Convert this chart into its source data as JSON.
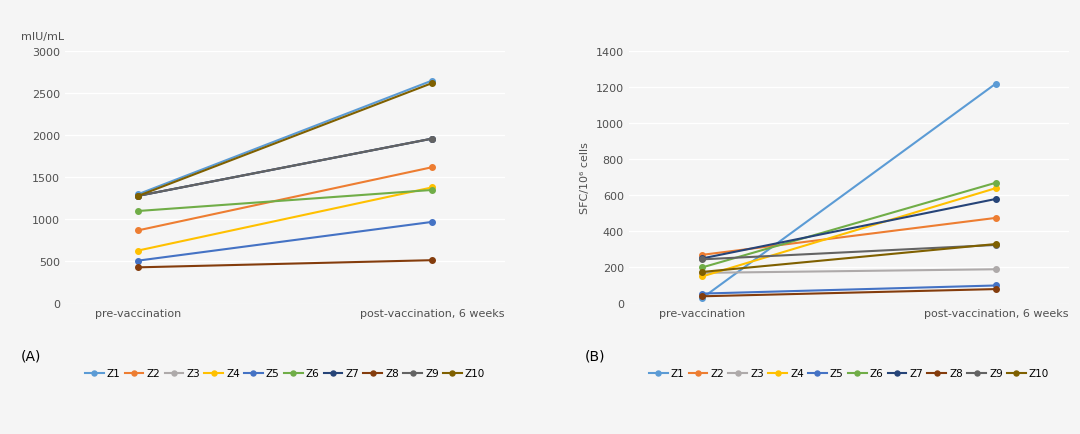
{
  "A": {
    "ylabel_top": "mIU/mL",
    "ylim": [
      0,
      3000
    ],
    "yticks": [
      0,
      500,
      1000,
      1500,
      2000,
      2500,
      3000
    ],
    "series": {
      "Z1": {
        "pre": 1300,
        "post": 2650,
        "color": "#5B9BD5"
      },
      "Z2": {
        "pre": 870,
        "post": 1620,
        "color": "#ED7D31"
      },
      "Z3": {
        "pre": 1280,
        "post": 1960,
        "color": "#AEAAAA"
      },
      "Z4": {
        "pre": 630,
        "post": 1380,
        "color": "#FFC000"
      },
      "Z5": {
        "pre": 510,
        "post": 970,
        "color": "#4472C4"
      },
      "Z6": {
        "pre": 1100,
        "post": 1350,
        "color": "#70AD47"
      },
      "Z7": {
        "pre": 1280,
        "post": 1960,
        "color": "#264478"
      },
      "Z8": {
        "pre": 430,
        "post": 515,
        "color": "#843C0C"
      },
      "Z9": {
        "pre": 1280,
        "post": 1960,
        "color": "#636363"
      },
      "Z10": {
        "pre": 1280,
        "post": 2620,
        "color": "#7F6000"
      }
    }
  },
  "B": {
    "ylabel_side": "SFC/10⁶ cells",
    "ylim": [
      0,
      1400
    ],
    "yticks": [
      0,
      200,
      400,
      600,
      800,
      1000,
      1200,
      1400
    ],
    "series": {
      "Z1": {
        "pre": 30,
        "post": 1220,
        "color": "#5B9BD5"
      },
      "Z2": {
        "pre": 270,
        "post": 475,
        "color": "#ED7D31"
      },
      "Z3": {
        "pre": 170,
        "post": 190,
        "color": "#AEAAAA"
      },
      "Z4": {
        "pre": 150,
        "post": 640,
        "color": "#FFC000"
      },
      "Z5": {
        "pre": 55,
        "post": 100,
        "color": "#4472C4"
      },
      "Z6": {
        "pre": 200,
        "post": 670,
        "color": "#70AD47"
      },
      "Z7": {
        "pre": 250,
        "post": 580,
        "color": "#264478"
      },
      "Z8": {
        "pre": 40,
        "post": 80,
        "color": "#843C0C"
      },
      "Z9": {
        "pre": 245,
        "post": 325,
        "color": "#636363"
      },
      "Z10": {
        "pre": 175,
        "post": 330,
        "color": "#7F6000"
      }
    }
  },
  "xtick_labels": [
    "pre-vaccination",
    "post-vaccination, 6 weeks"
  ],
  "panel_labels": [
    "(A)",
    "(B)"
  ],
  "background_color": "#F5F5F5",
  "grid_color": "#FFFFFF",
  "line_width": 1.5,
  "marker_size": 4,
  "marker": "o"
}
